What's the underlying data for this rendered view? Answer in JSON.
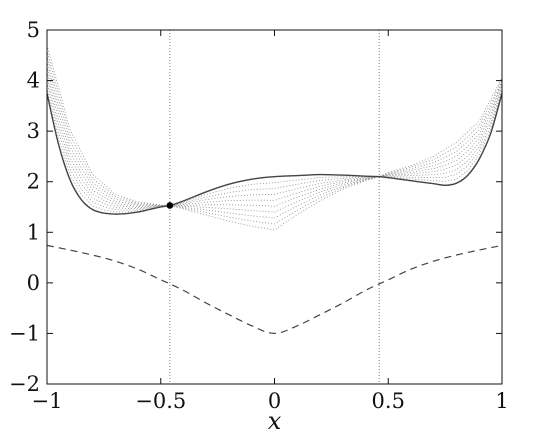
{
  "chart_data": {
    "type": "line",
    "title": "",
    "xlabel": "x",
    "ylabel": "",
    "xlim": [
      -1,
      1
    ],
    "ylim": [
      -2,
      5
    ],
    "xticks": [
      "−1",
      "−0.5",
      "0",
      "0.5",
      "1"
    ],
    "xtick_values": [
      -1,
      -0.5,
      0,
      0.5,
      1
    ],
    "yticks": [
      "5",
      "4",
      "3",
      "2",
      "1",
      "0",
      "−1",
      "−2"
    ],
    "ytick_values": [
      5,
      4,
      3,
      2,
      1,
      0,
      -1,
      -2
    ],
    "grid": false,
    "legend": "none",
    "vertical_reference_lines": [
      -0.46,
      0.46
    ],
    "marked_point": {
      "x": -0.46,
      "y": 1.53
    },
    "series": [
      {
        "style": "solid",
        "x": [
          -1.0,
          -0.95,
          -0.9,
          -0.85,
          -0.8,
          -0.75,
          -0.7,
          -0.65,
          -0.6,
          -0.55,
          -0.5,
          -0.46,
          -0.4,
          -0.3,
          -0.2,
          -0.1,
          0.0,
          0.1,
          0.2,
          0.3,
          0.4,
          0.46,
          0.5,
          0.6,
          0.7,
          0.75,
          0.8,
          0.85,
          0.9,
          0.95,
          1.0
        ],
        "y": [
          3.75,
          2.75,
          2.05,
          1.65,
          1.45,
          1.38,
          1.36,
          1.37,
          1.4,
          1.45,
          1.5,
          1.53,
          1.62,
          1.8,
          1.95,
          2.05,
          2.1,
          2.12,
          2.14,
          2.13,
          2.11,
          2.1,
          2.08,
          2.02,
          1.96,
          1.93,
          1.97,
          2.13,
          2.45,
          2.95,
          3.75
        ]
      },
      {
        "style": "dashed",
        "x": [
          -1.0,
          -0.9,
          -0.8,
          -0.7,
          -0.6,
          -0.5,
          -0.46,
          -0.4,
          -0.3,
          -0.2,
          -0.1,
          0.0,
          0.1,
          0.2,
          0.3,
          0.4,
          0.46,
          0.5,
          0.6,
          0.7,
          0.8,
          0.9,
          1.0
        ],
        "y": [
          0.74,
          0.65,
          0.55,
          0.43,
          0.27,
          0.06,
          -0.02,
          -0.15,
          -0.4,
          -0.63,
          -0.85,
          -1.0,
          -0.85,
          -0.63,
          -0.4,
          -0.15,
          -0.02,
          0.06,
          0.27,
          0.43,
          0.55,
          0.65,
          0.74
        ]
      },
      {
        "style": "dotted",
        "x": [
          -1.0,
          -0.9,
          -0.8,
          -0.7,
          -0.6,
          -0.5,
          -0.46,
          -0.4,
          -0.3,
          -0.2,
          -0.1,
          0.0,
          0.1,
          0.2,
          0.3,
          0.4,
          0.46,
          0.5,
          0.6,
          0.7,
          0.8,
          0.9,
          1.0
        ],
        "y": [
          4.7,
          3.05,
          2.15,
          1.75,
          1.6,
          1.54,
          1.53,
          1.46,
          1.34,
          1.22,
          1.12,
          1.05,
          1.35,
          1.62,
          1.85,
          2.02,
          2.1,
          2.18,
          2.32,
          2.5,
          2.78,
          3.2,
          4.05
        ]
      }
    ]
  }
}
